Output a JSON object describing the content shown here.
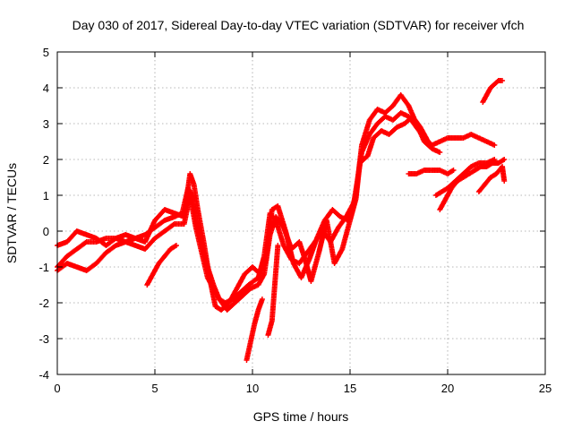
{
  "chart_data": {
    "type": "scatter",
    "title": "Day 030 of 2017, Sidereal Day-to-day VTEC variation (SDTVAR) for receiver vfch",
    "xlabel": "GPS time / hours",
    "ylabel": "SDTVAR / TECUs",
    "xlim": [
      0,
      25
    ],
    "ylim": [
      -4,
      5
    ],
    "xticks": [
      "0",
      "5",
      "10",
      "15",
      "20",
      "25"
    ],
    "yticks": [
      "-4",
      "-3",
      "-2",
      "-1",
      "0",
      "1",
      "2",
      "3",
      "4",
      "5"
    ],
    "grid": true,
    "marker": "plus",
    "color": "#ff0000",
    "series": [
      {
        "points": [
          [
            0.0,
            -1.0
          ],
          [
            0.5,
            -0.7
          ],
          [
            1.0,
            -0.5
          ],
          [
            1.5,
            -0.3
          ],
          [
            2.0,
            -0.3
          ],
          [
            2.5,
            -0.2
          ],
          [
            3.0,
            -0.2
          ],
          [
            3.5,
            -0.3
          ],
          [
            4.0,
            -0.2
          ],
          [
            4.5,
            -0.1
          ],
          [
            5.0,
            0.1
          ],
          [
            5.5,
            0.3
          ],
          [
            6.0,
            0.4
          ],
          [
            6.4,
            0.5
          ],
          [
            6.7,
            1.2
          ],
          [
            6.9,
            1.0
          ],
          [
            7.1,
            0.3
          ],
          [
            7.4,
            -0.4
          ],
          [
            7.7,
            -1.0
          ],
          [
            8.0,
            -1.5
          ],
          [
            8.3,
            -1.9
          ],
          [
            8.6,
            -2.0
          ],
          [
            9.0,
            -1.9
          ],
          [
            9.4,
            -1.7
          ],
          [
            9.8,
            -1.5
          ],
          [
            10.3,
            -1.3
          ],
          [
            10.6,
            -0.7
          ],
          [
            10.9,
            0.5
          ],
          [
            11.2,
            0.3
          ],
          [
            11.6,
            -0.4
          ],
          [
            12.0,
            -0.8
          ],
          [
            12.4,
            -0.9
          ],
          [
            12.8,
            -0.6
          ],
          [
            13.2,
            -0.3
          ],
          [
            13.6,
            0.0
          ],
          [
            14.0,
            -0.3
          ],
          [
            14.4,
            0.1
          ],
          [
            14.8,
            0.4
          ],
          [
            15.2,
            0.8
          ],
          [
            15.4,
            1.5
          ],
          [
            15.6,
            2.2
          ],
          [
            16.0,
            2.7
          ],
          [
            16.4,
            3.0
          ],
          [
            16.8,
            3.2
          ],
          [
            17.2,
            3.1
          ],
          [
            17.6,
            3.3
          ],
          [
            18.0,
            3.2
          ],
          [
            18.4,
            2.9
          ],
          [
            18.8,
            2.6
          ],
          [
            19.2,
            2.4
          ],
          [
            19.6,
            2.5
          ],
          [
            20.0,
            2.6
          ],
          [
            20.4,
            2.6
          ],
          [
            20.8,
            2.6
          ],
          [
            21.2,
            2.7
          ],
          [
            21.6,
            2.6
          ],
          [
            22.0,
            2.5
          ],
          [
            22.4,
            2.4
          ]
        ]
      },
      {
        "points": [
          [
            0.0,
            -0.4
          ],
          [
            0.5,
            -0.3
          ],
          [
            1.0,
            0.0
          ],
          [
            1.5,
            -0.1
          ],
          [
            2.0,
            -0.2
          ],
          [
            2.5,
            -0.4
          ],
          [
            3.0,
            -0.2
          ],
          [
            3.5,
            -0.1
          ],
          [
            4.0,
            -0.2
          ],
          [
            4.5,
            -0.3
          ],
          [
            5.0,
            0.3
          ],
          [
            5.5,
            0.6
          ],
          [
            6.0,
            0.5
          ],
          [
            6.5,
            0.4
          ],
          [
            6.8,
            1.6
          ],
          [
            7.0,
            1.3
          ],
          [
            7.2,
            0.6
          ],
          [
            7.5,
            -0.3
          ],
          [
            7.8,
            -1.3
          ],
          [
            8.1,
            -2.1
          ],
          [
            8.4,
            -2.2
          ],
          [
            8.8,
            -2.0
          ],
          [
            9.2,
            -1.6
          ],
          [
            9.6,
            -1.2
          ],
          [
            10.0,
            -1.0
          ],
          [
            10.4,
            -1.2
          ],
          [
            10.7,
            -0.8
          ],
          [
            11.0,
            0.6
          ],
          [
            11.3,
            0.7
          ],
          [
            11.7,
            0.0
          ],
          [
            12.1,
            -0.9
          ],
          [
            12.5,
            -1.3
          ],
          [
            12.9,
            -0.8
          ],
          [
            13.3,
            -0.2
          ],
          [
            13.7,
            0.3
          ],
          [
            14.1,
            0.6
          ],
          [
            14.5,
            0.4
          ],
          [
            14.9,
            0.3
          ],
          [
            15.3,
            1.0
          ],
          [
            15.6,
            2.4
          ],
          [
            16.0,
            3.1
          ],
          [
            16.4,
            3.4
          ],
          [
            16.8,
            3.3
          ],
          [
            17.2,
            3.5
          ],
          [
            17.6,
            3.8
          ],
          [
            18.0,
            3.5
          ],
          [
            18.4,
            3.0
          ],
          [
            18.8,
            2.5
          ],
          [
            19.2,
            2.3
          ],
          [
            19.6,
            2.2
          ]
        ]
      },
      {
        "points": [
          [
            0.0,
            -1.1
          ],
          [
            0.5,
            -0.9
          ],
          [
            1.0,
            -1.0
          ],
          [
            1.5,
            -1.1
          ],
          [
            2.0,
            -0.9
          ],
          [
            2.5,
            -0.6
          ],
          [
            3.0,
            -0.4
          ],
          [
            3.5,
            -0.3
          ],
          [
            4.0,
            -0.4
          ],
          [
            4.5,
            -0.5
          ],
          [
            5.0,
            -0.2
          ],
          [
            5.5,
            0.0
          ],
          [
            6.0,
            0.2
          ],
          [
            6.5,
            0.2
          ],
          [
            6.8,
            1.0
          ],
          [
            7.1,
            0.1
          ],
          [
            7.4,
            -0.6
          ],
          [
            7.7,
            -1.3
          ],
          [
            8.0,
            -1.6
          ],
          [
            8.3,
            -1.9
          ],
          [
            8.7,
            -2.2
          ],
          [
            9.1,
            -2.0
          ],
          [
            9.5,
            -1.8
          ],
          [
            9.9,
            -1.6
          ],
          [
            10.3,
            -1.5
          ],
          [
            10.6,
            -1.2
          ],
          [
            10.9,
            -0.1
          ],
          [
            11.2,
            0.4
          ],
          [
            11.6,
            0.1
          ],
          [
            12.0,
            -0.5
          ],
          [
            12.4,
            -0.3
          ],
          [
            12.7,
            -0.8
          ],
          [
            13.0,
            -1.4
          ],
          [
            13.4,
            -0.6
          ],
          [
            13.8,
            0.3
          ],
          [
            14.2,
            -0.9
          ],
          [
            14.6,
            -0.5
          ],
          [
            15.0,
            0.3
          ],
          [
            15.3,
            0.9
          ],
          [
            15.5,
            1.9
          ],
          [
            15.9,
            2.1
          ],
          [
            16.2,
            2.6
          ],
          [
            16.6,
            2.8
          ],
          [
            17.0,
            2.7
          ],
          [
            17.4,
            2.9
          ],
          [
            17.8,
            3.0
          ],
          [
            18.2,
            3.2
          ],
          [
            18.6,
            2.9
          ],
          [
            19.0,
            2.5
          ]
        ]
      },
      {
        "points": [
          [
            4.6,
            -1.5
          ],
          [
            4.9,
            -1.2
          ],
          [
            5.2,
            -0.9
          ],
          [
            5.5,
            -0.7
          ],
          [
            5.8,
            -0.5
          ],
          [
            6.1,
            -0.4
          ]
        ]
      },
      {
        "points": [
          [
            9.7,
            -3.6
          ],
          [
            9.9,
            -3.1
          ],
          [
            10.1,
            -2.6
          ],
          [
            10.3,
            -2.2
          ],
          [
            10.5,
            -1.9
          ]
        ]
      },
      {
        "points": [
          [
            10.8,
            -2.9
          ],
          [
            11.0,
            -2.5
          ],
          [
            11.1,
            -1.8
          ],
          [
            11.2,
            -1.1
          ],
          [
            11.3,
            -0.4
          ]
        ]
      },
      {
        "points": [
          [
            18.0,
            1.6
          ],
          [
            18.4,
            1.6
          ],
          [
            18.8,
            1.7
          ],
          [
            19.2,
            1.7
          ],
          [
            19.6,
            1.7
          ],
          [
            20.0,
            1.6
          ],
          [
            20.3,
            1.7
          ]
        ]
      },
      {
        "points": [
          [
            19.6,
            0.6
          ],
          [
            19.9,
            0.9
          ],
          [
            20.2,
            1.2
          ],
          [
            20.5,
            1.4
          ],
          [
            20.8,
            1.5
          ],
          [
            21.1,
            1.6
          ],
          [
            21.4,
            1.7
          ],
          [
            21.7,
            1.8
          ],
          [
            22.0,
            1.8
          ],
          [
            22.3,
            1.9
          ],
          [
            22.6,
            1.9
          ],
          [
            22.9,
            2.0
          ]
        ]
      },
      {
        "points": [
          [
            19.4,
            1.0
          ],
          [
            19.7,
            1.1
          ],
          [
            20.0,
            1.2
          ],
          [
            20.4,
            1.4
          ],
          [
            20.8,
            1.6
          ],
          [
            21.2,
            1.8
          ],
          [
            21.6,
            1.9
          ],
          [
            22.0,
            1.9
          ],
          [
            22.4,
            2.0
          ]
        ]
      },
      {
        "points": [
          [
            21.6,
            1.1
          ],
          [
            21.9,
            1.3
          ],
          [
            22.2,
            1.5
          ],
          [
            22.5,
            1.6
          ],
          [
            22.8,
            1.8
          ],
          [
            22.9,
            1.4
          ]
        ]
      },
      {
        "points": [
          [
            21.8,
            3.6
          ],
          [
            22.0,
            3.8
          ],
          [
            22.2,
            4.0
          ],
          [
            22.4,
            4.1
          ],
          [
            22.6,
            4.2
          ],
          [
            22.8,
            4.2
          ]
        ]
      }
    ]
  }
}
